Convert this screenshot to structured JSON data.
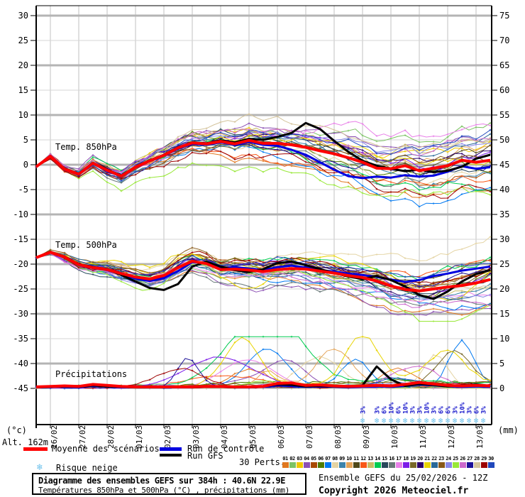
{
  "axis": {
    "unit_left": "(°c)",
    "unit_right": "(mm)",
    "altitude": "Alt. 162m"
  },
  "legend": {
    "mean_label": "Moyenne des scénarios",
    "control_label": "Run de contrôle",
    "gfs_label": "Run GFS",
    "perts_label": "30 Perts.",
    "snow_label": "Risque neige",
    "pert_numbers": [
      "01",
      "02",
      "03",
      "04",
      "05",
      "06",
      "07",
      "08",
      "09",
      "10",
      "11",
      "12",
      "13",
      "14",
      "15",
      "16",
      "17",
      "18",
      "19",
      "20",
      "21",
      "22",
      "23",
      "24",
      "25",
      "26",
      "27",
      "28",
      "29",
      "30"
    ]
  },
  "footer": {
    "title": "Diagramme des ensembles GEFS sur 384h : 40.6N 22.9E",
    "subtitle": "Températures 850hPa et 500hPa (°C) , précipitations (mm)",
    "run_info": "Ensemble GEFS du 25/02/2026 - 12Z",
    "copyright": "Copyright 2026 Meteociel.fr"
  },
  "chart_data": {
    "type": "line",
    "title": "Diagramme des ensembles GEFS sur 384h : 40.6N 22.9E",
    "x_total_hours": 384,
    "x_step_hours": 12,
    "x_dates": [
      "26/02",
      "27/02",
      "28/02",
      "01/03",
      "02/03",
      "03/03",
      "04/03",
      "05/03",
      "06/03",
      "07/03",
      "08/03",
      "09/03",
      "10/03",
      "11/03",
      "12/03",
      "13/03"
    ],
    "ylim_left": [
      -45,
      30
    ],
    "ylim_right": [
      0,
      75
    ],
    "ytick_step": 5,
    "grid": {
      "on": true,
      "thick_left_values": [
        30,
        20,
        10,
        0,
        -10,
        -20,
        -30,
        -40
      ]
    },
    "panel_labels": {
      "t850": "Temp. 850hPa",
      "t500": "Temp. 500hPa",
      "precip": "Précipitations"
    },
    "series": {
      "mean": {
        "name": "Moyenne des scénarios",
        "color": "#ff0000",
        "t850": [
          -0.4,
          1.7,
          -0.9,
          -1.9,
          0.3,
          -1.1,
          -2.3,
          -0.5,
          0.8,
          1.9,
          3.4,
          4.4,
          4.2,
          4.7,
          4.2,
          4.9,
          4.3,
          4.3,
          4.0,
          3.5,
          2.8,
          2.2,
          1.4,
          0.5,
          -0.7,
          -0.8,
          -0.2,
          -1.2,
          -0.7,
          -0.2,
          0.9,
          0.5,
          0.9
        ],
        "t500": [
          -18.7,
          -17.6,
          -18.6,
          -20.1,
          -20.7,
          -21.1,
          -21.9,
          -22.6,
          -23.0,
          -22.3,
          -20.7,
          -19.4,
          -19.9,
          -21.1,
          -21.0,
          -21.2,
          -21.5,
          -21.1,
          -20.9,
          -21.0,
          -21.4,
          -21.8,
          -22.3,
          -22.7,
          -23.4,
          -24.4,
          -25.1,
          -25.4,
          -25.0,
          -24.6,
          -24.3,
          -23.8,
          -23.1
        ],
        "precip": [
          0.3,
          0.4,
          0.5,
          0.4,
          0.8,
          0.6,
          0.4,
          0.3,
          0.3,
          0.3,
          0.3,
          0.3,
          0.4,
          0.4,
          0.3,
          0.3,
          0.4,
          1.0,
          1.1,
          0.6,
          0.7,
          0.5,
          0.4,
          0.5,
          0.6,
          0.5,
          0.8,
          1.2,
          0.9,
          0.6,
          0.5,
          0.6,
          0.5
        ]
      },
      "control": {
        "name": "Run de contrôle",
        "color": "#0000e0",
        "t850": [
          -0.4,
          1.7,
          -1.0,
          -2.0,
          0.2,
          -1.2,
          -2.4,
          -0.6,
          0.7,
          1.8,
          3.2,
          4.2,
          4.0,
          4.5,
          4.0,
          4.6,
          4.0,
          3.8,
          3.0,
          2.0,
          0.5,
          -1.0,
          -2.3,
          -2.7,
          -2.4,
          -2.6,
          -2.1,
          -2.4,
          -2.2,
          -1.4,
          -0.3,
          -0.8,
          -0.5
        ],
        "t500": [
          -18.7,
          -17.6,
          -18.7,
          -20.2,
          -20.8,
          -21.2,
          -22.1,
          -22.9,
          -23.4,
          -22.8,
          -21.4,
          -19.6,
          -19.7,
          -20.8,
          -20.6,
          -20.9,
          -21.2,
          -20.6,
          -20.3,
          -20.7,
          -21.2,
          -21.5,
          -21.9,
          -22.2,
          -22.6,
          -23.1,
          -23.6,
          -23.2,
          -22.4,
          -21.9,
          -21.3,
          -20.9,
          -20.5
        ],
        "precip": [
          0.2,
          0.3,
          0.3,
          0.2,
          0.5,
          0.4,
          0.2,
          0.2,
          0.2,
          0.2,
          0.2,
          0.2,
          0.3,
          0.3,
          0.2,
          0.2,
          0.3,
          0.6,
          0.5,
          0.3,
          0.4,
          0.3,
          0.2,
          0.3,
          0.4,
          0.3,
          0.5,
          0.8,
          0.6,
          0.4,
          0.3,
          0.4,
          0.3
        ]
      },
      "gfs": {
        "name": "Run GFS",
        "color": "#000000",
        "t850": [
          -0.4,
          1.8,
          -0.8,
          -1.8,
          0.4,
          -1.0,
          -2.2,
          -0.4,
          0.9,
          2.0,
          3.5,
          4.5,
          4.3,
          4.9,
          4.5,
          5.2,
          5.0,
          5.6,
          6.4,
          8.4,
          7.2,
          4.8,
          2.6,
          0.8,
          -0.2,
          -0.8,
          -1.3,
          -1.0,
          -1.5,
          -1.2,
          -0.4,
          1.2,
          2.0
        ],
        "t500": [
          -18.7,
          -17.5,
          -18.5,
          -20.0,
          -20.6,
          -21.0,
          -22.2,
          -23.5,
          -24.8,
          -25.2,
          -24.0,
          -20.5,
          -19.5,
          -20.5,
          -21.2,
          -21.6,
          -21.0,
          -19.8,
          -19.5,
          -20.2,
          -21.0,
          -21.8,
          -22.5,
          -23.0,
          -22.4,
          -23.2,
          -24.5,
          -26.2,
          -27.0,
          -25.5,
          -23.5,
          -22.0,
          -21.2
        ],
        "precip": [
          0.2,
          0.3,
          0.4,
          0.3,
          0.6,
          0.4,
          0.3,
          0.2,
          0.2,
          0.2,
          0.3,
          0.2,
          0.3,
          0.3,
          0.2,
          0.3,
          0.4,
          0.8,
          0.7,
          0.4,
          0.5,
          0.4,
          0.3,
          0.6,
          4.4,
          1.8,
          0.5,
          0.9,
          0.7,
          0.4,
          0.6,
          0.8,
          0.5
        ]
      },
      "perturbations": {
        "count": 30,
        "colors": [
          "#E07820",
          "#7CC364",
          "#EEC800",
          "#8C50B4",
          "#A84800",
          "#507C00",
          "#0078F0",
          "#E4D4A4",
          "#3C84AC",
          "#E4A458",
          "#504818",
          "#F85818",
          "#C8BC64",
          "#00CC50",
          "#28485C",
          "#687878",
          "#E880E8",
          "#7C1CE8",
          "#786828",
          "#2C006C",
          "#E8D400",
          "#286898",
          "#885818",
          "#8888E8",
          "#98E838",
          "#CC68CC",
          "#1C1098",
          "#D4C49C",
          "#9C0000",
          "#2048BC"
        ],
        "generator": {
          "seed_base": 77,
          "seed_step": 131,
          "t850": {
            "walk": 0.75,
            "scale": 2.2,
            "ramp_pow": 0.35,
            "clamp": [
              -11,
              12.5
            ]
          },
          "t500": {
            "walk": 0.75,
            "scale": 1.9,
            "ramp_pow": 0.3,
            "clamp": [
              -31.5,
              -14.2
            ]
          },
          "precip": {
            "clamp": [
              0,
              10.4
            ]
          },
          "forced": {
            "t850_offsets": [
              {
                "s": 16,
                "from": 36,
                "amp": 6.5
              },
              {
                "s": 26,
                "from": 40,
                "amp": 4.0
              }
            ],
            "t500_spikes": [
              {
                "s": 20,
                "c": 29,
                "amp": -5.5,
                "w": 3
              },
              {
                "s": 20,
                "c": 58,
                "amp": -6,
                "w": 4
              },
              {
                "s": 24,
                "c": 60,
                "amp": -7,
                "w": 5
              }
            ],
            "precip_spikes": [
              {
                "s": 20,
                "c": 29,
                "amp": 9.5,
                "w": 2.4
              },
              {
                "s": 20,
                "c": 46,
                "amp": 10,
                "w": 2.2
              },
              {
                "s": 6,
                "c": 60,
                "amp": 9.2,
                "w": 1.8
              },
              {
                "s": 9,
                "c": 42,
                "amp": 7.5,
                "w": 2.6
              },
              {
                "s": 7,
                "c": 40,
                "amp": 6,
                "w": 3
              },
              {
                "s": 0,
                "c": 51,
                "amp": 3.5,
                "w": 2.4
              }
            ]
          }
        }
      }
    },
    "snow_risk": {
      "label_color": "#1818cc",
      "flake_color": "#6ec2ec",
      "markers": [
        {
          "t": 276,
          "pct": "3%"
        },
        {
          "t": 288,
          "pct": "3%"
        },
        {
          "t": 294,
          "pct": "6%"
        },
        {
          "t": 300,
          "pct": "10%"
        },
        {
          "t": 306,
          "pct": "6%"
        },
        {
          "t": 312,
          "pct": "10%"
        },
        {
          "t": 318,
          "pct": "3%"
        },
        {
          "t": 324,
          "pct": "3%"
        },
        {
          "t": 330,
          "pct": "10%"
        },
        {
          "t": 336,
          "pct": "3%"
        },
        {
          "t": 342,
          "pct": "6%"
        },
        {
          "t": 348,
          "pct": "6%"
        },
        {
          "t": 354,
          "pct": "3%"
        },
        {
          "t": 360,
          "pct": "10%"
        },
        {
          "t": 366,
          "pct": "3%"
        },
        {
          "t": 372,
          "pct": "6%"
        },
        {
          "t": 378,
          "pct": "3%"
        }
      ]
    }
  }
}
